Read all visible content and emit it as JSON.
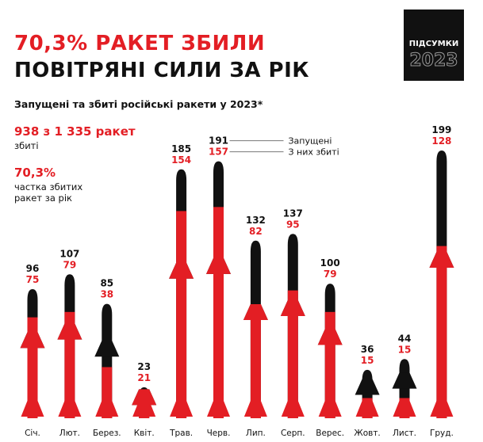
{
  "badge": {
    "label": "ПІДСУМКИ",
    "year": "2023"
  },
  "title_line1": "70,3% РАКЕТ ЗБИЛИ",
  "title_line2": "ПОВІТРЯНІ СИЛИ ЗА РІК",
  "subtitle": "Запущені та збиті російські ракети у 2023*",
  "stats": {
    "shot_down": "938 з 1 335 ракет",
    "shot_down_label": "збиті",
    "share": "70,3%",
    "share_label": "частка збитих ракет за рік"
  },
  "colors": {
    "launched": "#111111",
    "intercepted": "#e31e24"
  },
  "chart_data": {
    "type": "bar",
    "categories": [
      "Січ.",
      "Лют.",
      "Берез.",
      "Квіт.",
      "Трав.",
      "Черв.",
      "Лип.",
      "Серп.",
      "Верес.",
      "Жовт.",
      "Лист.",
      "Груд."
    ],
    "series": [
      {
        "name": "Запущені",
        "values": [
          96,
          107,
          85,
          23,
          185,
          191,
          132,
          137,
          100,
          36,
          44,
          199
        ]
      },
      {
        "name": "З них збиті",
        "values": [
          75,
          79,
          38,
          21,
          154,
          157,
          82,
          95,
          79,
          15,
          15,
          128
        ]
      }
    ],
    "legend": [
      "Запущені",
      "З них збиті"
    ]
  }
}
